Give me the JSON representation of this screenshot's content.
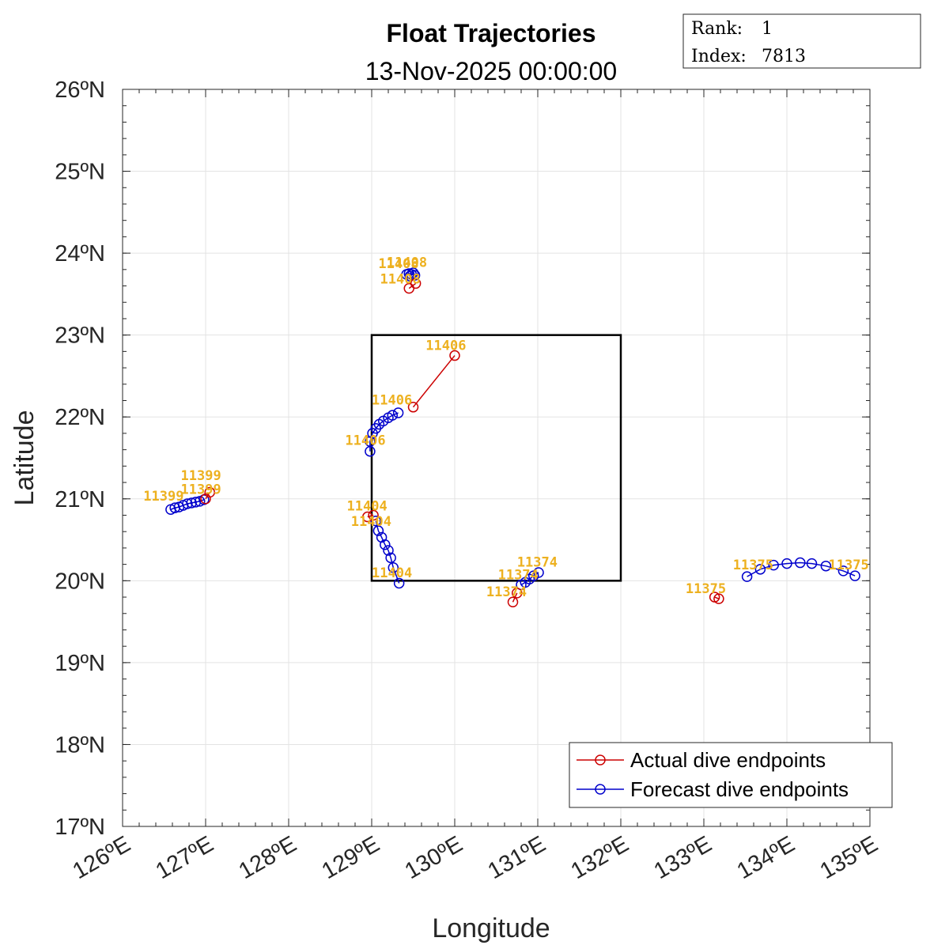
{
  "header": {
    "title": "Float Trajectories",
    "subtitle": "13-Nov-2025 00:00:00"
  },
  "info_box": {
    "rank_label": "Rank:",
    "rank_value": "1",
    "index_label": "Index:",
    "index_value": "7813"
  },
  "colors": {
    "actual": "#CC0000",
    "forecast": "#0000CC",
    "label": "#EDB120",
    "grid": "#e3e3e3",
    "box": "#000000"
  },
  "chart_data": {
    "type": "line",
    "xlabel": "Longitude",
    "ylabel": "Latitude",
    "xlim": [
      126,
      135
    ],
    "ylim": [
      17,
      26
    ],
    "x_ticks": [
      "126ºE",
      "127ºE",
      "128ºE",
      "129ºE",
      "130ºE",
      "131ºE",
      "132ºE",
      "133ºE",
      "134ºE",
      "135ºE"
    ],
    "y_ticks": [
      "17ºN",
      "18ºN",
      "19ºN",
      "20ºN",
      "21ºN",
      "22ºN",
      "23ºN",
      "24ºN",
      "25ºN",
      "26ºN"
    ],
    "grid": true,
    "legend_position": "bottom-right",
    "legend": [
      {
        "name": "Actual dive endpoints",
        "color": "#CC0000"
      },
      {
        "name": "Forecast dive endpoints",
        "color": "#0000CC"
      }
    ],
    "region_box": {
      "lon": [
        129,
        132
      ],
      "lat": [
        20,
        23
      ]
    },
    "actual_tracks": [
      {
        "id": "11399",
        "points": [
          [
            127.0,
            21.0
          ],
          [
            127.05,
            21.08
          ]
        ]
      },
      {
        "id": "11406",
        "points": [
          [
            129.5,
            22.12
          ],
          [
            130.0,
            22.75
          ]
        ]
      },
      {
        "id": "11408",
        "points": [
          [
            129.45,
            23.57
          ],
          [
            129.53,
            23.63
          ]
        ]
      },
      {
        "id": "11404",
        "points": [
          [
            128.95,
            20.78
          ],
          [
            129.02,
            20.8
          ]
        ]
      },
      {
        "id": "11374",
        "points": [
          [
            130.7,
            19.74
          ],
          [
            130.75,
            19.85
          ]
        ]
      },
      {
        "id": "11375",
        "points": [
          [
            133.13,
            19.8
          ],
          [
            133.18,
            19.78
          ]
        ]
      }
    ],
    "forecast_tracks": [
      {
        "id": "11399",
        "points": [
          [
            126.58,
            20.87
          ],
          [
            126.63,
            20.89
          ],
          [
            126.68,
            20.9
          ],
          [
            126.73,
            20.92
          ],
          [
            126.78,
            20.94
          ],
          [
            126.83,
            20.95
          ],
          [
            126.88,
            20.96
          ],
          [
            126.93,
            20.97
          ],
          [
            126.98,
            20.99
          ]
        ]
      },
      {
        "id": "11406",
        "points": [
          [
            129.32,
            22.05
          ],
          [
            129.25,
            22.02
          ],
          [
            129.2,
            21.99
          ],
          [
            129.14,
            21.95
          ],
          [
            129.09,
            21.91
          ],
          [
            129.05,
            21.86
          ],
          [
            129.01,
            21.8
          ],
          [
            128.98,
            21.7
          ],
          [
            128.98,
            21.58
          ]
        ]
      },
      {
        "id": "11408",
        "points": [
          [
            129.42,
            23.74
          ],
          [
            129.45,
            23.75
          ],
          [
            129.48,
            23.74
          ],
          [
            129.52,
            23.73
          ],
          [
            129.5,
            23.76
          ],
          [
            129.46,
            23.72
          ]
        ]
      },
      {
        "id": "11404",
        "points": [
          [
            129.05,
            20.73
          ],
          [
            129.08,
            20.61
          ],
          [
            129.12,
            20.53
          ],
          [
            129.16,
            20.44
          ],
          [
            129.2,
            20.37
          ],
          [
            129.23,
            20.28
          ],
          [
            129.26,
            20.16
          ],
          [
            129.33,
            19.97
          ]
        ]
      },
      {
        "id": "11374",
        "points": [
          [
            130.8,
            19.95
          ],
          [
            130.85,
            19.98
          ],
          [
            130.9,
            20.02
          ],
          [
            130.95,
            20.06
          ],
          [
            131.01,
            20.1
          ]
        ]
      },
      {
        "id": "11375",
        "points": [
          [
            133.52,
            20.05
          ],
          [
            133.68,
            20.14
          ],
          [
            133.84,
            20.19
          ],
          [
            134.0,
            20.21
          ],
          [
            134.16,
            20.22
          ],
          [
            134.3,
            20.21
          ],
          [
            134.47,
            20.18
          ],
          [
            134.68,
            20.12
          ],
          [
            134.82,
            20.06
          ]
        ]
      }
    ],
    "annotations": [
      {
        "text": "11399",
        "x": 126.7,
        "y": 21.23
      },
      {
        "text": "11399",
        "x": 126.25,
        "y": 20.98
      },
      {
        "text": "11399",
        "x": 126.7,
        "y": 21.06
      },
      {
        "text": "11406",
        "x": 129.65,
        "y": 22.82
      },
      {
        "text": "11406",
        "x": 129.0,
        "y": 22.15
      },
      {
        "text": "11406",
        "x": 128.68,
        "y": 21.66
      },
      {
        "text": "11408",
        "x": 129.08,
        "y": 23.82
      },
      {
        "text": "11408",
        "x": 129.18,
        "y": 23.83
      },
      {
        "text": "11408",
        "x": 129.1,
        "y": 23.63
      },
      {
        "text": "11404",
        "x": 128.7,
        "y": 20.86
      },
      {
        "text": "11404",
        "x": 128.75,
        "y": 20.67
      },
      {
        "text": "11404",
        "x": 129.0,
        "y": 20.04
      },
      {
        "text": "11374",
        "x": 130.75,
        "y": 20.17
      },
      {
        "text": "11374",
        "x": 130.52,
        "y": 20.02
      },
      {
        "text": "11374",
        "x": 130.38,
        "y": 19.81
      },
      {
        "text": "11375",
        "x": 133.35,
        "y": 20.14
      },
      {
        "text": "11375",
        "x": 134.5,
        "y": 20.14
      },
      {
        "text": "11375",
        "x": 132.78,
        "y": 19.85
      }
    ]
  }
}
